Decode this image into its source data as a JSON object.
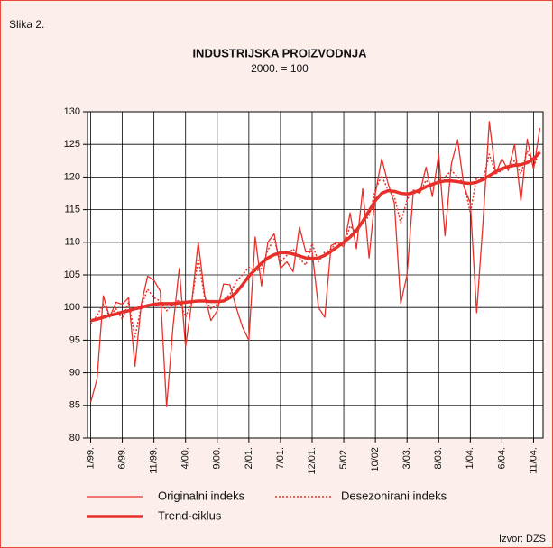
{
  "chart_data": {
    "type": "line",
    "label": "Slika 2.",
    "title": "INDUSTRIJSKA PROIZVODNJA",
    "subtitle": "2000. = 100",
    "source": "Izvor: DZS",
    "categories": [
      "1/99.",
      null,
      null,
      null,
      null,
      "6/99.",
      null,
      null,
      null,
      null,
      "11/99.",
      null,
      null,
      null,
      null,
      "4/00.",
      null,
      null,
      null,
      null,
      "9/00.",
      null,
      null,
      null,
      null,
      "2/01.",
      null,
      null,
      null,
      null,
      "7/01.",
      null,
      null,
      null,
      null,
      "12/01.",
      null,
      null,
      null,
      null,
      "5/02.",
      null,
      null,
      null,
      null,
      "10/02",
      null,
      null,
      null,
      null,
      "3/03.",
      null,
      null,
      null,
      null,
      "8/03.",
      null,
      null,
      null,
      null,
      "1/04.",
      null,
      null,
      null,
      null,
      "6/04.",
      null,
      null,
      null,
      null,
      "11/04.",
      null
    ],
    "ylim": [
      80,
      130
    ],
    "yticks": [
      80,
      85,
      90,
      95,
      100,
      105,
      110,
      115,
      120,
      125,
      130
    ],
    "grid": true,
    "series": [
      {
        "name": "Originalni indeks",
        "color": "#e8302a",
        "values": [
          85.5,
          89,
          101.8,
          98.5,
          100.8,
          100.5,
          101.5,
          91,
          100.5,
          104.8,
          104.2,
          102.5,
          84.8,
          97,
          106,
          94,
          101,
          110,
          102,
          98,
          99.5,
          103.6,
          103.5,
          100,
          97,
          95,
          110.8,
          103.3,
          110,
          111.3,
          106,
          107,
          105.5,
          112.3,
          108.5,
          108.6,
          100,
          98.5,
          109.5,
          110,
          109.3,
          114.5,
          109,
          118.2,
          107.6,
          117.5,
          122.8,
          119,
          116,
          100.6,
          105,
          118,
          117.5,
          121.5,
          117,
          123.5,
          111,
          122,
          125.7,
          118.5,
          116,
          99.2,
          113,
          128.5,
          120.5,
          122.8,
          121,
          125,
          116.3,
          125.8,
          121.2,
          127.5
        ]
      },
      {
        "name": "Desezonirani indeks",
        "color": "#e8302a",
        "values": [
          97.5,
          98.8,
          100.5,
          98.6,
          99.8,
          98.2,
          100.8,
          95.5,
          100.2,
          102.8,
          101.5,
          101,
          99.5,
          100.5,
          101.2,
          98.5,
          101,
          107.5,
          101.5,
          99.8,
          100.5,
          101.2,
          102,
          104,
          105,
          106.2,
          105.5,
          106,
          108.8,
          110.5,
          107,
          108,
          109,
          107.5,
          106.5,
          109.8,
          107,
          108.5,
          109,
          110,
          109.5,
          112.5,
          111.5,
          113,
          114,
          118,
          120.2,
          118,
          117,
          113,
          116.5,
          118,
          117.5,
          119.5,
          118.5,
          119.5,
          120,
          121,
          120,
          119,
          114.5,
          120,
          119.5,
          123.5,
          120.5,
          121,
          121.5,
          122.5,
          120.5,
          124,
          121.5,
          124.2
        ]
      },
      {
        "name": "Trend-ciklus",
        "color": "#e8302a",
        "values": [
          98,
          98.2,
          98.5,
          98.8,
          99,
          99.3,
          99.5,
          99.8,
          100,
          100.3,
          100.5,
          100.6,
          100.6,
          100.6,
          100.7,
          100.8,
          100.9,
          101,
          101,
          100.9,
          100.9,
          101,
          101.5,
          102.3,
          103.5,
          104.8,
          105.8,
          106.8,
          107.6,
          108.1,
          108.4,
          108.4,
          108.2,
          107.9,
          107.6,
          107.5,
          107.6,
          108,
          108.6,
          109.3,
          110,
          110.8,
          111.8,
          113.2,
          114.8,
          116.4,
          117.5,
          117.9,
          117.8,
          117.5,
          117.4,
          117.6,
          118,
          118.5,
          118.9,
          119.2,
          119.4,
          119.4,
          119.3,
          119.1,
          119,
          119.2,
          119.6,
          120.2,
          120.8,
          121.3,
          121.6,
          121.8,
          121.9,
          122.2,
          122.8,
          123.8
        ]
      }
    ]
  }
}
